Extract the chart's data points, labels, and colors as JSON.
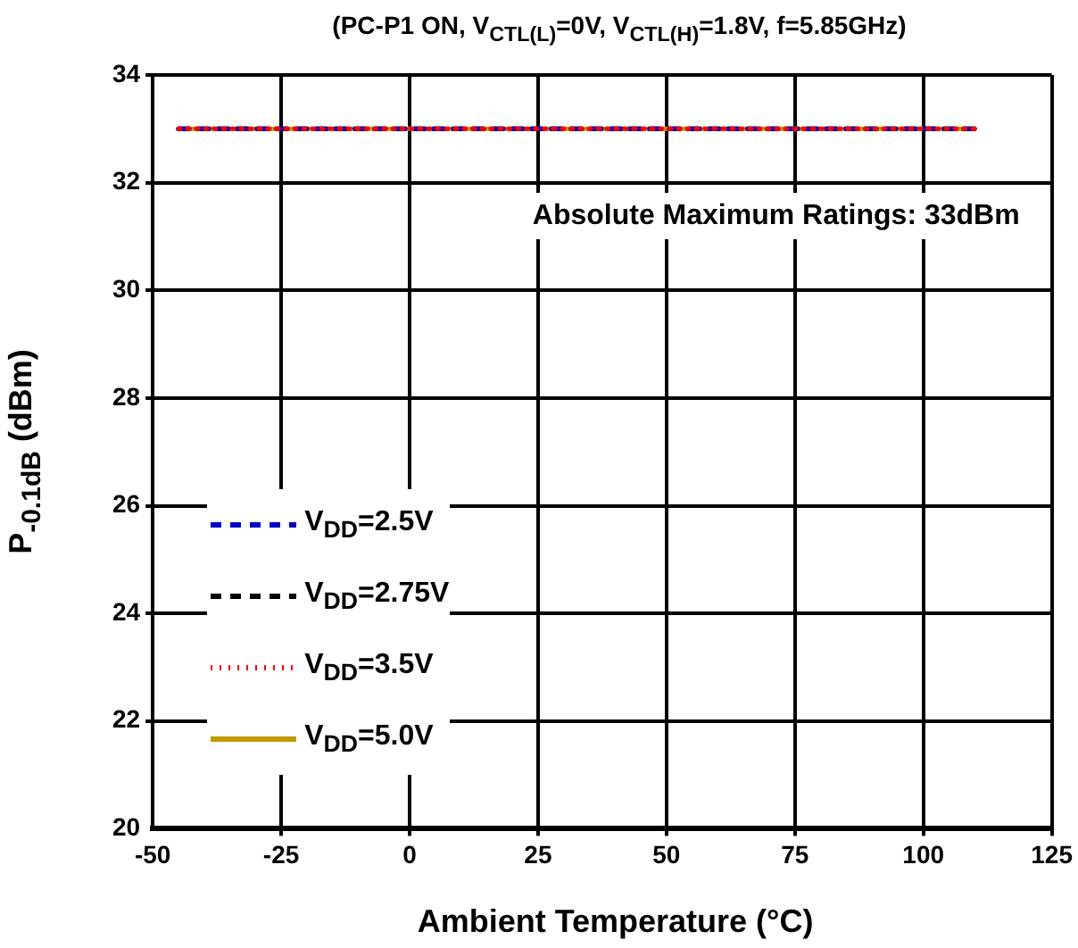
{
  "chart_data": {
    "type": "line",
    "title": "(PC-P1 ON, V$_{CTL(L)}$=0V, V$_{CTL(H)}$=1.8V, f=5.85GHz)",
    "xlabel": "Ambient Temperature  (°C)",
    "ylabel": "P$_{-0.1dB}$  (dBm)",
    "x": [
      -45,
      110
    ],
    "series": [
      {
        "name": "V$_{DD}$=2.5V",
        "color": "#0000cc",
        "line_style": "dashed",
        "values": [
          33,
          33
        ]
      },
      {
        "name": "V$_{DD}$=2.75V",
        "color": "#000000",
        "line_style": "dashed",
        "values": [
          33,
          33
        ]
      },
      {
        "name": "V$_{DD}$=3.5V",
        "color": "#ff0000",
        "line_style": "dotted",
        "values": [
          33,
          33
        ]
      },
      {
        "name": "V$_{DD}$=5.0V",
        "color": "#c09a00",
        "line_style": "solid",
        "values": [
          33,
          33
        ]
      }
    ],
    "xlim": [
      -50,
      125
    ],
    "xticks": [
      -50,
      -25,
      0,
      25,
      50,
      75,
      100,
      125
    ],
    "ylim": [
      20,
      34
    ],
    "yticks": [
      20,
      22,
      24,
      26,
      28,
      30,
      32,
      34
    ],
    "annotations": [
      "Absolute Maximum Ratings: 33dBm"
    ],
    "grid": true,
    "legend": "bottom left",
    "marker": "none"
  }
}
